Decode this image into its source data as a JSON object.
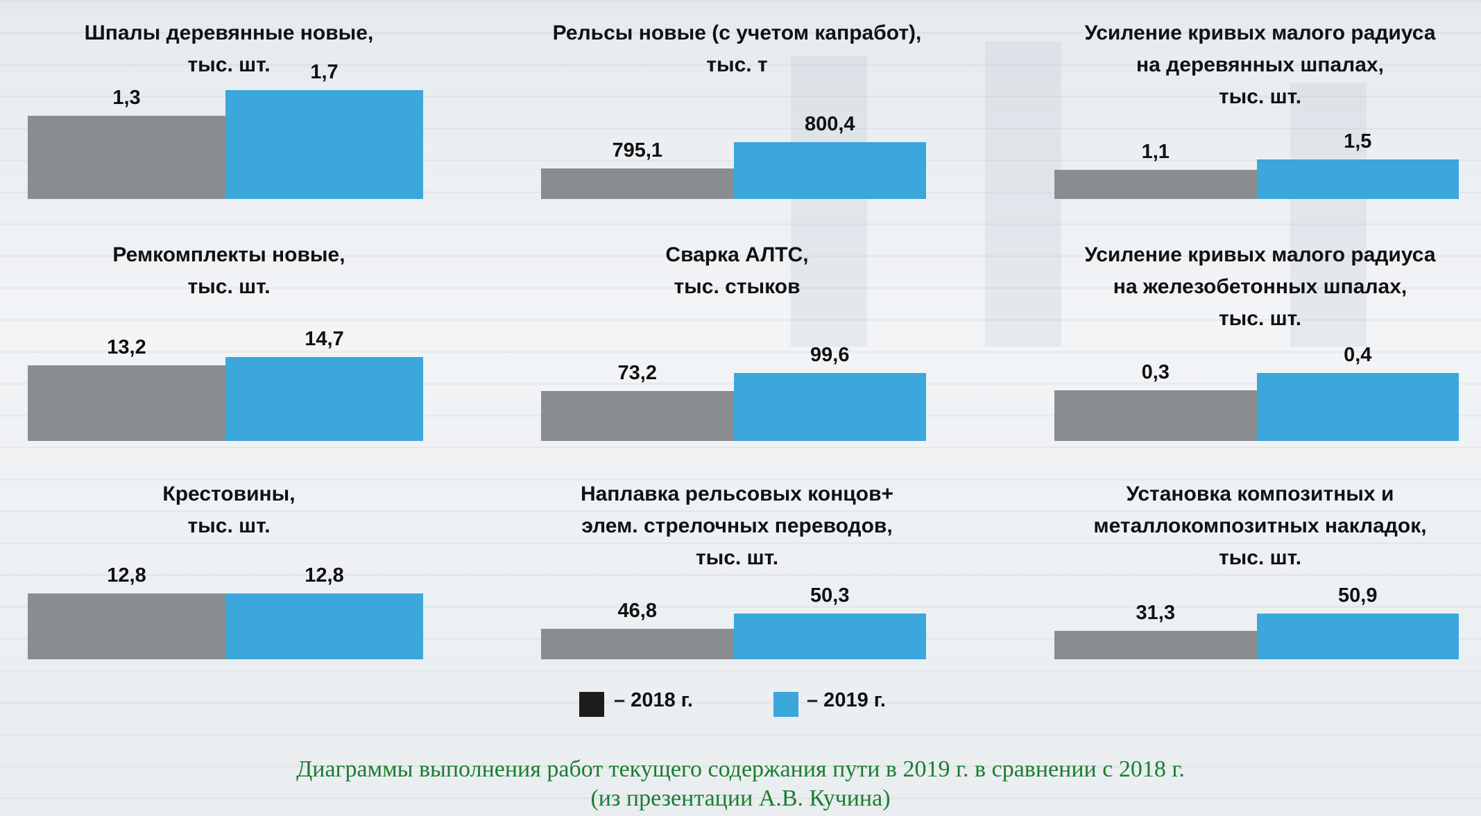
{
  "colors": {
    "y2018": "#8a8d8f",
    "y2019": "#3ba7da",
    "caption": "#1a7d2e"
  },
  "legend": {
    "label_2018": "–  2018 г.",
    "label_2019": "– 2019 г."
  },
  "caption": {
    "line1": "Диаграммы выполнения работ текущего содержания пути в 2019 г. в сравнении с 2018 г.",
    "line2": "(из презентации А.В. Кучина)"
  },
  "chart_data": [
    {
      "type": "bar",
      "title_lines": [
        "Шпалы деревянные новые,",
        "тыс. шт."
      ],
      "categories": [
        "2018 г.",
        "2019 г."
      ],
      "values": [
        1.3,
        1.7
      ],
      "labels": [
        "1,3",
        "1,7"
      ],
      "ylim": [
        0,
        1.7
      ]
    },
    {
      "type": "bar",
      "title_lines": [
        "Рельсы новые (с учетом капработ),",
        "тыс.  т"
      ],
      "categories": [
        "2018 г.",
        "2019 г."
      ],
      "values": [
        795.1,
        800.4
      ],
      "labels": [
        "795,1",
        "800,4"
      ],
      "ylim": [
        789,
        800.4
      ]
    },
    {
      "type": "bar",
      "title_lines": [
        "Усиление кривых малого радиуса",
        "на деревянных шпалах,",
        "тыс. шт."
      ],
      "categories": [
        "2018 г.",
        "2019 г."
      ],
      "values": [
        1.1,
        1.5
      ],
      "labels": [
        "1,1",
        "1,5"
      ],
      "ylim": [
        0,
        1.5
      ]
    },
    {
      "type": "bar",
      "title_lines": [
        "Ремкомплекты новые,",
        "тыс. шт."
      ],
      "categories": [
        "2018 г.",
        "2019 г."
      ],
      "values": [
        13.2,
        14.7
      ],
      "labels": [
        "13,2",
        "14,7"
      ],
      "ylim": [
        0,
        14.7
      ]
    },
    {
      "type": "bar",
      "title_lines": [
        "Сварка АЛТС,",
        "тыс.  стыков"
      ],
      "categories": [
        "2018 г.",
        "2019 г."
      ],
      "values": [
        73.2,
        99.6
      ],
      "labels": [
        "73,2",
        "99,6"
      ],
      "ylim": [
        0,
        99.6
      ]
    },
    {
      "type": "bar",
      "title_lines": [
        "Усиление кривых малого радиуса",
        "на железобетонных шпалах,",
        "тыс. шт."
      ],
      "categories": [
        "2018 г.",
        "2019 г."
      ],
      "values": [
        0.3,
        0.4
      ],
      "labels": [
        "0,3",
        "0,4"
      ],
      "ylim": [
        0,
        0.4
      ]
    },
    {
      "type": "bar",
      "title_lines": [
        "Крестовины,",
        "тыс. шт."
      ],
      "categories": [
        "2018 г.",
        "2019 г."
      ],
      "values": [
        12.8,
        12.8
      ],
      "labels": [
        "12,8",
        "12,8"
      ],
      "ylim": [
        0,
        12.8
      ]
    },
    {
      "type": "bar",
      "title_lines": [
        "Наплавка рельсовых концов+",
        "элем. стрелочных переводов,",
        "тыс. шт."
      ],
      "categories": [
        "2018 г.",
        "2019 г."
      ],
      "values": [
        46.8,
        50.3
      ],
      "labels": [
        "46,8",
        "50,3"
      ],
      "ylim": [
        40,
        50.3
      ]
    },
    {
      "type": "bar",
      "title_lines": [
        "Установка композитных и",
        "металлокомпозитных накладок,",
        "тыс. шт."
      ],
      "categories": [
        "2018 г.",
        "2019 г."
      ],
      "values": [
        31.3,
        50.9
      ],
      "labels": [
        "31,3",
        "50,9"
      ],
      "ylim": [
        0,
        50.9
      ]
    }
  ]
}
